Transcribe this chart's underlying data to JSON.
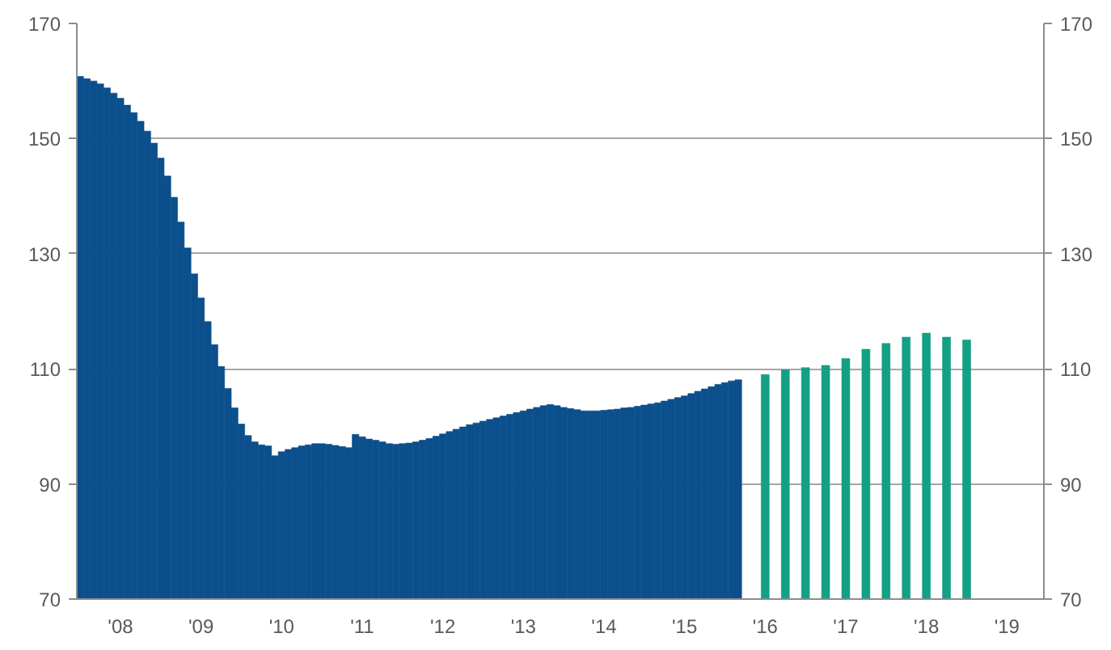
{
  "chart_data": {
    "type": "bar",
    "grid": "y",
    "categories": [
      null,
      null,
      null,
      null,
      null,
      null,
      "'08",
      null,
      null,
      null,
      null,
      null,
      null,
      null,
      null,
      null,
      null,
      null,
      "'09",
      null,
      null,
      null,
      null,
      null,
      null,
      null,
      null,
      null,
      null,
      null,
      "'10",
      null,
      null,
      null,
      null,
      null,
      null,
      null,
      null,
      null,
      null,
      null,
      "'11",
      null,
      null,
      null,
      null,
      null,
      null,
      null,
      null,
      null,
      null,
      null,
      "'12",
      null,
      null,
      null,
      null,
      null,
      null,
      null,
      null,
      null,
      null,
      null,
      "'13",
      null,
      null,
      null,
      null,
      null,
      null,
      null,
      null,
      null,
      null,
      null,
      "'14",
      null,
      null,
      null,
      null,
      null,
      null,
      null,
      null,
      null,
      null,
      null,
      "'15",
      null,
      null,
      null,
      null,
      null,
      null,
      null,
      null,
      null,
      null,
      null,
      "'16",
      null,
      null,
      null,
      null,
      null,
      null,
      null,
      null,
      null,
      null,
      null,
      "'17",
      null,
      null,
      null,
      null,
      null,
      null,
      null,
      null,
      null,
      null,
      null,
      "'18",
      null,
      null,
      null,
      null,
      null,
      null,
      null,
      null,
      null,
      null,
      null,
      "'19",
      null,
      null,
      null,
      null,
      null
    ],
    "ylim": [
      70,
      170
    ],
    "yticks": [
      70,
      90,
      110,
      130,
      150,
      170
    ],
    "y2lim": [
      70,
      170
    ],
    "y2ticks": [
      70,
      90,
      110,
      130,
      150,
      170
    ],
    "series": [
      {
        "color": "#0b4f8c",
        "values": [
          160.8,
          160.4,
          160,
          159.5,
          158.8,
          157.9,
          157,
          155.8,
          154.5,
          153,
          151.3,
          149.2,
          146.6,
          143.5,
          139.8,
          135.5,
          131,
          126.5,
          122.3,
          118.2,
          114.2,
          110.4,
          106.6,
          103.2,
          100.4,
          98.4,
          97.3,
          96.8,
          96.6,
          94.9,
          95.6,
          96,
          96.3,
          96.6,
          96.8,
          97,
          97,
          96.9,
          96.7,
          96.5,
          96.3,
          98.6,
          98.2,
          97.8,
          97.6,
          97.3,
          97,
          96.9,
          97,
          97.1,
          97.3,
          97.6,
          97.9,
          98.3,
          98.7,
          99.1,
          99.5,
          99.9,
          100.3,
          100.6,
          100.9,
          101.2,
          101.5,
          101.8,
          102.1,
          102.4,
          102.7,
          103,
          103.3,
          103.6,
          103.8,
          103.6,
          103.3,
          103.1,
          102.9,
          102.7,
          102.7,
          102.7,
          102.8,
          102.9,
          103,
          103.2,
          103.3,
          103.5,
          103.7,
          103.9,
          104.1,
          104.4,
          104.7,
          105,
          105.3,
          105.7,
          106.1,
          106.5,
          106.9,
          107.3,
          107.6,
          107.9,
          108.1,
          null,
          null,
          null,
          null,
          null,
          null,
          null,
          null,
          null,
          null,
          null,
          null,
          null,
          null,
          null,
          null,
          null,
          null,
          null,
          null,
          null,
          null,
          null,
          null,
          null,
          null,
          null,
          null,
          null,
          null,
          null,
          null,
          null,
          null,
          null,
          null,
          null,
          null,
          null,
          null,
          null,
          null,
          null,
          null,
          null
        ]
      },
      {
        "color": "#13a085",
        "values": [
          null,
          null,
          null,
          null,
          null,
          null,
          null,
          null,
          null,
          null,
          null,
          null,
          null,
          null,
          null,
          null,
          null,
          null,
          null,
          null,
          null,
          null,
          null,
          null,
          null,
          null,
          null,
          null,
          null,
          null,
          null,
          null,
          null,
          null,
          null,
          null,
          null,
          null,
          null,
          null,
          null,
          null,
          null,
          null,
          null,
          null,
          null,
          null,
          null,
          null,
          null,
          null,
          null,
          null,
          null,
          null,
          null,
          null,
          null,
          null,
          null,
          null,
          null,
          null,
          null,
          null,
          null,
          null,
          null,
          null,
          null,
          null,
          null,
          null,
          null,
          null,
          null,
          null,
          null,
          null,
          null,
          null,
          null,
          null,
          null,
          null,
          null,
          null,
          null,
          null,
          null,
          null,
          null,
          null,
          null,
          null,
          null,
          null,
          null,
          null,
          null,
          null,
          109,
          null,
          null,
          109.8,
          null,
          null,
          110.2,
          null,
          null,
          110.6,
          null,
          null,
          111.8,
          null,
          null,
          113.4,
          null,
          null,
          114.4,
          null,
          null,
          115.5,
          null,
          null,
          116.2,
          null,
          null,
          115.5,
          null,
          null,
          115,
          null,
          null,
          null,
          null,
          null,
          null,
          null,
          null,
          null,
          null,
          null
        ]
      }
    ]
  }
}
